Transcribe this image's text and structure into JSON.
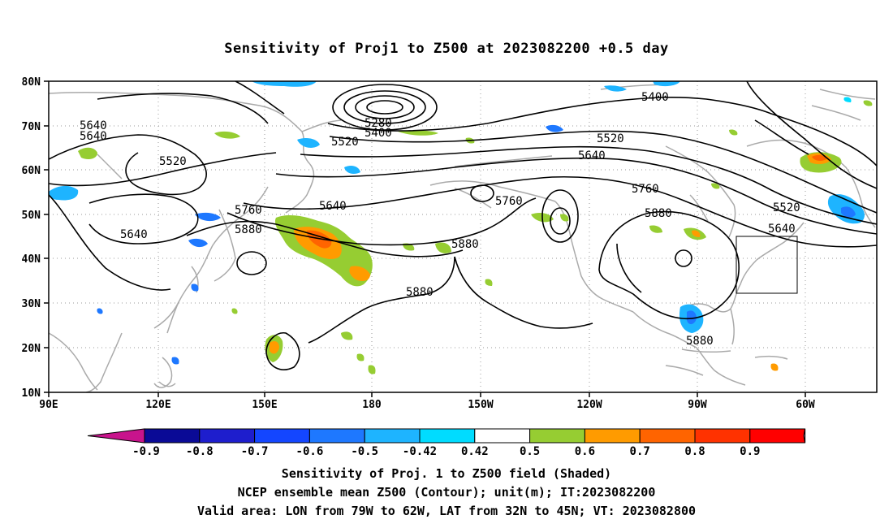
{
  "title": "Sensitivity of Proj1 to Z500 at 2023082200 +0.5 day",
  "lat_labels": [
    "80N",
    "70N",
    "60N",
    "50N",
    "40N",
    "30N",
    "20N",
    "10N"
  ],
  "lon_labels": [
    "90E",
    "120E",
    "150E",
    "180",
    "150W",
    "120W",
    "90W",
    "60W"
  ],
  "contour_labels": [
    "5280",
    "5400",
    "5520",
    "5400",
    "5640",
    "5640",
    "5520",
    "5520",
    "5640",
    "5640",
    "5760",
    "5640",
    "5880",
    "5760",
    "5760",
    "5880",
    "5880",
    "5520",
    "5640",
    "5880",
    "5880"
  ],
  "colorbar": {
    "labels": [
      "-0.9",
      "-0.8",
      "-0.7",
      "-0.6",
      "-0.5",
      "-0.42",
      "0.42",
      "0.5",
      "0.6",
      "0.7",
      "0.8",
      "0.9"
    ],
    "colors": [
      "#c8148c",
      "#0a0a96",
      "#1e1ecd",
      "#1446ff",
      "#1e78ff",
      "#1eb4ff",
      "#00dcff",
      "#ffffff",
      "#96cd32",
      "#ff9b00",
      "#ff6400",
      "#ff3200",
      "#ff0000",
      "#ff96c8"
    ]
  },
  "valid_box": {
    "lon_min": -79,
    "lon_max": -62,
    "lat_min": 32,
    "lat_max": 45
  },
  "captions": [
    "Sensitivity of Proj. 1 to Z500 field (Shaded)",
    "NCEP ensemble mean Z500 (Contour); unit(m); IT:2023082200",
    "Valid area: LON from 79W to 62W, LAT from 32N to 45N; VT: 2023082800"
  ]
}
